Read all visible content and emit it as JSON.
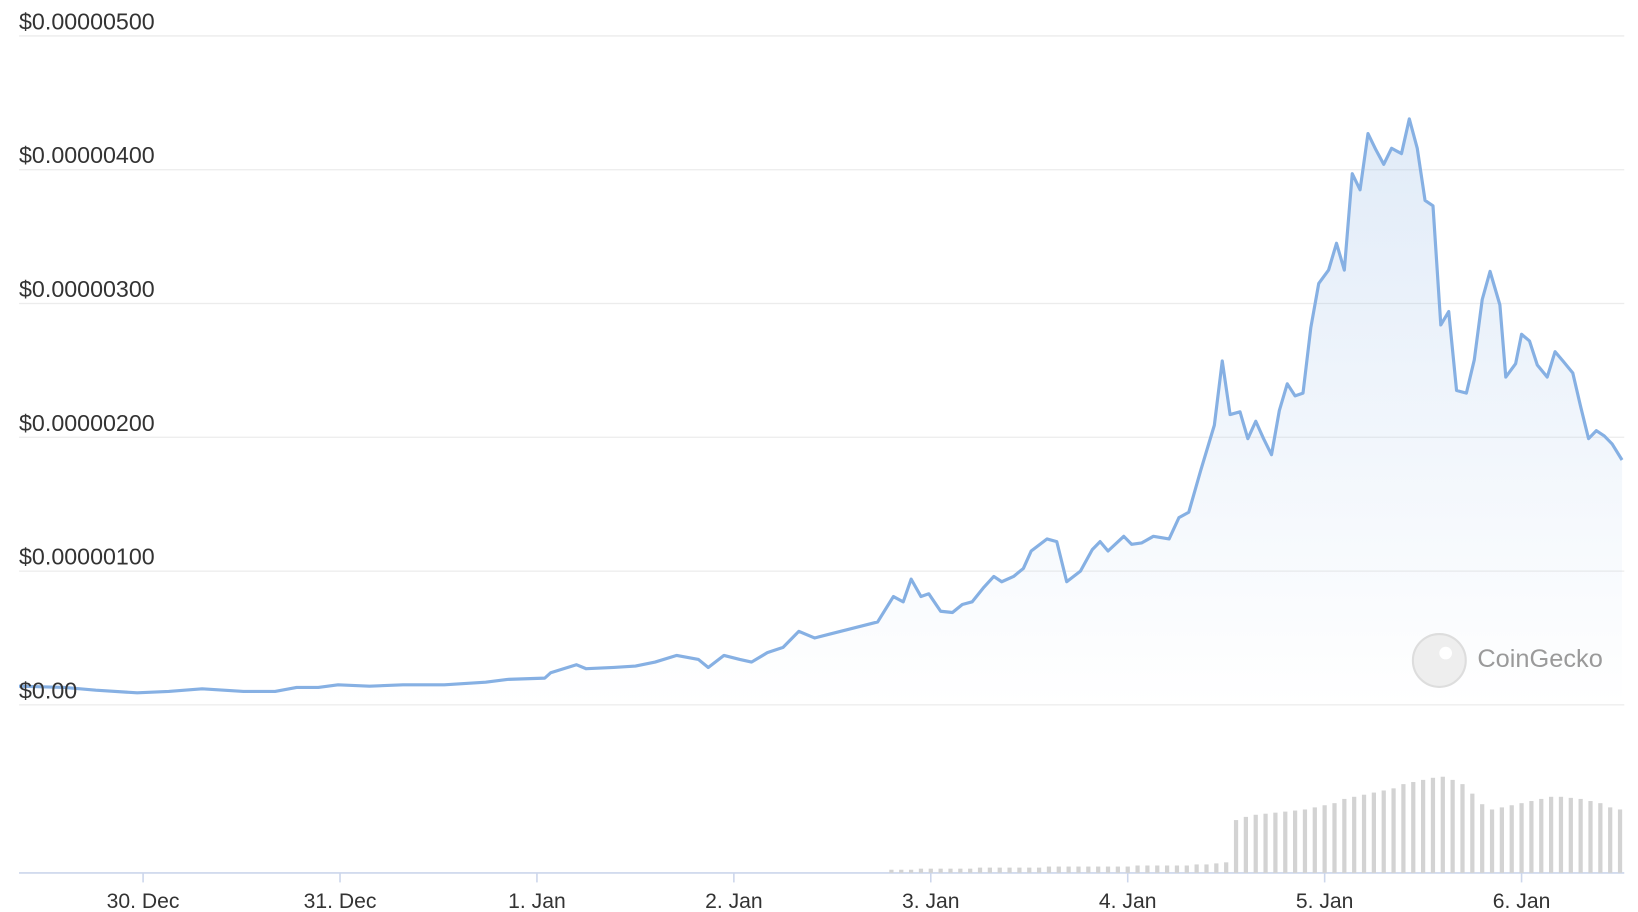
{
  "chart_data": {
    "type": "line",
    "watermark": "CoinGecko",
    "x": [
      -0.63,
      -0.4,
      -0.24,
      -0.03,
      0.13,
      0.3,
      0.51,
      0.67,
      0.78,
      0.89,
      0.99,
      1.15,
      1.32,
      1.53,
      1.74,
      1.85,
      2.04,
      2.07,
      2.2,
      2.25,
      2.39,
      2.5,
      2.6,
      2.71,
      2.82,
      2.87,
      2.95,
      3.03,
      3.09,
      3.17,
      3.25,
      3.33,
      3.41,
      3.49,
      3.57,
      3.65,
      3.73,
      3.81,
      3.86,
      3.9,
      3.95,
      3.99,
      4.05,
      4.11,
      4.16,
      4.21,
      4.27,
      4.32,
      4.36,
      4.42,
      4.47,
      4.51,
      4.59,
      4.64,
      4.69,
      4.76,
      4.82,
      4.86,
      4.9,
      4.98,
      5.02,
      5.07,
      5.13,
      5.21,
      5.26,
      5.31,
      5.37,
      5.44,
      5.48,
      5.52,
      5.57,
      5.61,
      5.65,
      5.69,
      5.73,
      5.77,
      5.81,
      5.85,
      5.89,
      5.93,
      5.97,
      6.02,
      6.06,
      6.1,
      6.14,
      6.18,
      6.22,
      6.26,
      6.3,
      6.34,
      6.39,
      6.43,
      6.47,
      6.51,
      6.55,
      6.59,
      6.63,
      6.67,
      6.72,
      6.76,
      6.8,
      6.84,
      6.89,
      6.92,
      6.97,
      7.0,
      7.04,
      7.08,
      7.13,
      7.17,
      7.21,
      7.26,
      7.3,
      7.34,
      7.38,
      7.42,
      7.46,
      7.51
    ],
    "series": [
      {
        "color": "#86b0e3",
        "values": [
          1.4e-07,
          1.3e-07,
          1.1e-07,
          9e-08,
          1e-07,
          1.2e-07,
          1e-07,
          1e-07,
          1.3e-07,
          1.3e-07,
          1.5e-07,
          1.4e-07,
          1.5e-07,
          1.5e-07,
          1.7e-07,
          1.9e-07,
          2e-07,
          2.4e-07,
          3e-07,
          2.7e-07,
          2.8e-07,
          2.9e-07,
          3.2e-07,
          3.7e-07,
          3.4e-07,
          2.8e-07,
          3.7e-07,
          3.4e-07,
          3.2e-07,
          3.9e-07,
          4.3e-07,
          5.5e-07,
          5e-07,
          5.3e-07,
          5.6e-07,
          5.9e-07,
          6.2e-07,
          8.1e-07,
          7.7e-07,
          9.4e-07,
          8.1e-07,
          8.3e-07,
          7e-07,
          6.9e-07,
          7.5e-07,
          7.7e-07,
          8.8e-07,
          9.6e-07,
          9.2e-07,
          9.6e-07,
          1.02e-06,
          1.15e-06,
          1.24e-06,
          1.22e-06,
          9.2e-07,
          1e-06,
          1.16e-06,
          1.22e-06,
          1.15e-06,
          1.26e-06,
          1.2e-06,
          1.21e-06,
          1.26e-06,
          1.24e-06,
          1.4e-06,
          1.44e-06,
          1.75e-06,
          2.09e-06,
          2.57e-06,
          2.17e-06,
          2.19e-06,
          1.99e-06,
          2.12e-06,
          1.99e-06,
          1.87e-06,
          2.2e-06,
          2.4e-06,
          2.31e-06,
          2.33e-06,
          2.82e-06,
          3.15e-06,
          3.25e-06,
          3.45e-06,
          3.25e-06,
          3.97e-06,
          3.85e-06,
          4.27e-06,
          4.15e-06,
          4.04e-06,
          4.16e-06,
          4.12e-06,
          4.38e-06,
          4.16e-06,
          3.77e-06,
          3.73e-06,
          2.84e-06,
          2.94e-06,
          2.35e-06,
          2.33e-06,
          2.58e-06,
          3.03e-06,
          3.24e-06,
          2.99e-06,
          2.45e-06,
          2.55e-06,
          2.77e-06,
          2.72e-06,
          2.54e-06,
          2.45e-06,
          2.64e-06,
          2.57e-06,
          2.48e-06,
          2.23e-06,
          1.99e-06,
          2.05e-06,
          2.01e-06,
          1.95e-06,
          1.83e-06
        ]
      }
    ],
    "volume": {
      "color": "#d3d3d3",
      "x": [
        3.8,
        3.85,
        3.9,
        3.95,
        4.0,
        4.05,
        4.1,
        4.15,
        4.2,
        4.25,
        4.3,
        4.35,
        4.4,
        4.45,
        4.5,
        4.55,
        4.6,
        4.65,
        4.7,
        4.75,
        4.8,
        4.85,
        4.9,
        4.95,
        5.0,
        5.05,
        5.1,
        5.15,
        5.2,
        5.25,
        5.3,
        5.35,
        5.4,
        5.45,
        5.5,
        5.55,
        5.6,
        5.65,
        5.7,
        5.75,
        5.8,
        5.85,
        5.9,
        5.95,
        6.0,
        6.05,
        6.1,
        6.15,
        6.2,
        6.25,
        6.3,
        6.35,
        6.4,
        6.45,
        6.5,
        6.55,
        6.6,
        6.65,
        6.7,
        6.75,
        6.8,
        6.85,
        6.9,
        6.95,
        7.0,
        7.05,
        7.1,
        7.15,
        7.2,
        7.25,
        7.3,
        7.35,
        7.4,
        7.45,
        7.5
      ],
      "values": [
        3,
        3,
        3,
        4,
        4,
        4,
        4,
        4,
        4,
        5,
        5,
        5,
        5,
        5,
        5,
        5,
        6,
        6,
        6,
        6,
        6,
        6,
        6,
        6,
        6,
        7,
        7,
        7,
        7,
        7,
        7,
        8,
        8,
        9,
        10,
        50,
        53,
        55,
        56,
        57,
        58,
        59,
        60,
        62,
        64,
        66,
        70,
        72,
        74,
        76,
        78,
        80,
        84,
        86,
        88,
        90,
        91,
        88,
        84,
        75,
        65,
        60,
        62,
        64,
        66,
        68,
        70,
        72,
        72,
        71,
        70,
        68,
        66,
        62,
        60
      ]
    },
    "xlim": [
      -0.63,
      7.5
    ],
    "xticks": [
      {
        "value": 0,
        "label": "30. Dec"
      },
      {
        "value": 1,
        "label": "31. Dec"
      },
      {
        "value": 2,
        "label": "1. Jan"
      },
      {
        "value": 3,
        "label": "2. Jan"
      },
      {
        "value": 4,
        "label": "3. Jan"
      },
      {
        "value": 5,
        "label": "4. Jan"
      },
      {
        "value": 6,
        "label": "5. Jan"
      },
      {
        "value": 7,
        "label": "6. Jan"
      }
    ],
    "ylim": [
      0,
      5e-06
    ],
    "yticks": [
      {
        "value": 0,
        "label": "$0.00"
      },
      {
        "value": 1e-06,
        "label": "$0.00000100"
      },
      {
        "value": 2e-06,
        "label": "$0.00000200"
      },
      {
        "value": 3e-06,
        "label": "$0.00000300"
      },
      {
        "value": 4e-06,
        "label": "$0.00000400"
      },
      {
        "value": 5e-06,
        "label": "$0.00000500"
      }
    ],
    "grid": true
  }
}
